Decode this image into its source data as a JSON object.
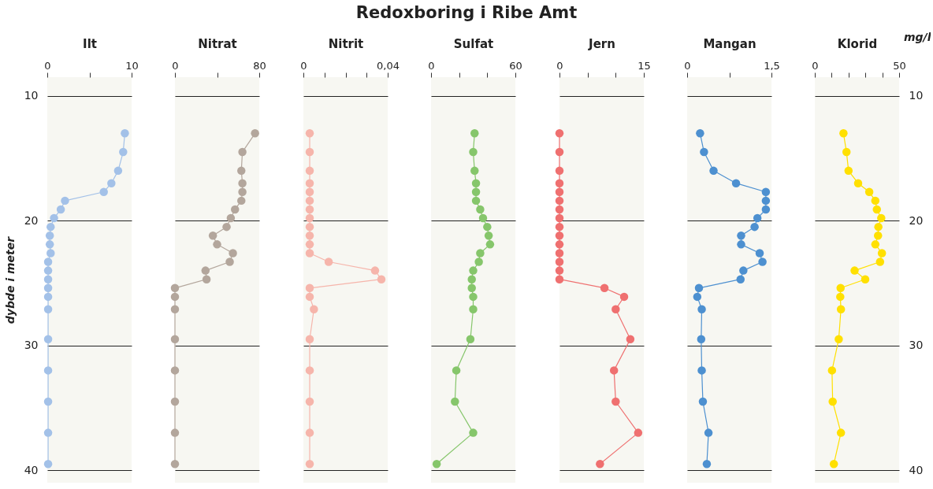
{
  "chart_data": [
    {
      "type": "other",
      "title": "Redoxboring i Ribe Amt"
    },
    {
      "type": "line",
      "xlabel": "Ilt",
      "ylabel": "dybde i meter",
      "color": "#a3c1e8",
      "marker": "circle",
      "grid": "y",
      "x": [
        9.2,
        9.0,
        8.4,
        7.6,
        6.7,
        2.1,
        1.6,
        0.8,
        0.4,
        0.3,
        0.3,
        0.4,
        0.1,
        0.1,
        0.1,
        0.1,
        0.1,
        0.1,
        0.1,
        0.1,
        0.1,
        0.1,
        0.1
      ],
      "values": [
        13.0,
        14.5,
        16.0,
        17.0,
        17.7,
        18.4,
        19.1,
        19.8,
        20.5,
        21.2,
        21.9,
        22.6,
        23.3,
        24.0,
        24.7,
        25.4,
        26.1,
        27.1,
        29.5,
        32.0,
        34.5,
        37.0,
        39.5
      ],
      "xlim": [
        0,
        10
      ],
      "xticks": [
        0,
        {
          "value": 5,
          "label": null
        },
        10
      ],
      "ylim": [
        41,
        8.5
      ],
      "yticks": [
        10,
        20,
        30,
        40
      ]
    },
    {
      "type": "line",
      "xlabel": "Nitrat",
      "color": "#b3a69c",
      "marker": "circle",
      "grid": "y",
      "tick_labels": "x",
      "x": [
        76,
        64,
        63,
        64,
        64,
        63,
        57,
        53,
        49,
        36,
        40,
        55,
        52,
        29,
        30,
        0,
        0,
        0,
        0,
        0,
        0,
        0,
        0
      ],
      "values": [
        13.0,
        14.5,
        16.0,
        17.0,
        17.7,
        18.4,
        19.1,
        19.8,
        20.5,
        21.2,
        21.9,
        22.6,
        23.3,
        24.0,
        24.7,
        25.4,
        26.1,
        27.1,
        29.5,
        32.0,
        34.5,
        37.0,
        39.5
      ],
      "xlim": [
        0,
        80
      ],
      "xticks": [
        0,
        {
          "value": 40,
          "label": null
        },
        80
      ],
      "ylim": [
        41,
        8.5
      ],
      "yticks": [
        10,
        20,
        30,
        40
      ]
    },
    {
      "type": "line",
      "xlabel": "Nitrit",
      "color": "#f6b5ab",
      "marker": "circle",
      "grid": "y",
      "tick_labels": "x",
      "x": [
        0.003,
        0.003,
        0.003,
        0.003,
        0.003,
        0.003,
        0.003,
        0.003,
        0.003,
        0.003,
        0.003,
        0.003,
        0.012,
        0.034,
        0.037,
        0.003,
        0.003,
        0.005,
        0.003,
        0.003,
        0.003,
        0.003,
        0.003
      ],
      "values": [
        13.0,
        14.5,
        16.0,
        17.0,
        17.7,
        18.4,
        19.1,
        19.8,
        20.5,
        21.2,
        21.9,
        22.6,
        23.3,
        24.0,
        24.7,
        25.4,
        26.1,
        27.1,
        29.5,
        32.0,
        34.5,
        37.0,
        39.5
      ],
      "xlim": [
        0,
        0.04
      ],
      "xticks": [
        0,
        {
          "value": 0.01,
          "label": null
        },
        {
          "value": 0.02,
          "label": null
        },
        {
          "value": 0.03,
          "label": null
        },
        {
          "value": 0.04,
          "label": "0,04"
        }
      ],
      "ylim": [
        41,
        8.5
      ],
      "yticks": [
        10,
        20,
        30,
        40
      ]
    },
    {
      "type": "line",
      "xlabel": "Sulfat",
      "color": "#86c66b",
      "marker": "circle",
      "grid": "y",
      "tick_labels": "x",
      "x": [
        31,
        30,
        31,
        32,
        32,
        32,
        35,
        37,
        40,
        41,
        42,
        35,
        34,
        30,
        29,
        29,
        30,
        30,
        28,
        18,
        17,
        30,
        4
      ],
      "values": [
        13.0,
        14.5,
        16.0,
        17.0,
        17.7,
        18.4,
        19.1,
        19.8,
        20.5,
        21.2,
        21.9,
        22.6,
        23.3,
        24.0,
        24.7,
        25.4,
        26.1,
        27.1,
        29.5,
        32.0,
        34.5,
        37.0,
        39.5
      ],
      "xlim": [
        0,
        60
      ],
      "xticks": [
        0,
        {
          "value": 20,
          "label": null
        },
        {
          "value": 40,
          "label": null
        },
        60
      ],
      "ylim": [
        41,
        8.5
      ],
      "yticks": [
        10,
        20,
        30,
        40
      ]
    },
    {
      "type": "line",
      "xlabel": "Jern",
      "color": "#ef7070",
      "marker": "circle",
      "grid": "y",
      "tick_labels": "x",
      "x": [
        0,
        0,
        0,
        0,
        0,
        0,
        0,
        0,
        0,
        0,
        0,
        0,
        0,
        0,
        0,
        8.0,
        11.5,
        10.0,
        12.6,
        9.7,
        10.0,
        14.0,
        7.2
      ],
      "values": [
        13.0,
        14.5,
        16.0,
        17.0,
        17.7,
        18.4,
        19.1,
        19.8,
        20.5,
        21.2,
        21.9,
        22.6,
        23.3,
        24.0,
        24.7,
        25.4,
        26.1,
        27.1,
        29.5,
        32.0,
        34.5,
        37.0,
        39.5
      ],
      "xlim": [
        0,
        15
      ],
      "xticks": [
        0,
        {
          "value": 5,
          "label": null
        },
        {
          "value": 10,
          "label": null
        },
        15
      ],
      "ylim": [
        41,
        8.5
      ],
      "yticks": [
        10,
        20,
        30,
        40
      ]
    },
    {
      "type": "line",
      "xlabel": "Mangan",
      "color": "#4d90d0",
      "marker": "circle",
      "grid": "y",
      "tick_labels": "x",
      "x": [
        0.23,
        0.3,
        0.47,
        0.87,
        1.4,
        1.4,
        1.4,
        1.25,
        1.2,
        0.96,
        0.96,
        1.29,
        1.34,
        1.0,
        0.95,
        0.21,
        0.18,
        0.26,
        0.25,
        0.26,
        0.28,
        0.38,
        0.35
      ],
      "values": [
        13.0,
        14.5,
        16.0,
        17.0,
        17.7,
        18.4,
        19.1,
        19.8,
        20.5,
        21.2,
        21.9,
        22.6,
        23.3,
        24.0,
        24.7,
        25.4,
        26.1,
        27.1,
        29.5,
        32.0,
        34.5,
        37.0,
        39.5
      ],
      "xlim": [
        0,
        1.5
      ],
      "xticks": [
        0,
        {
          "value": 0.75,
          "label": null
        },
        {
          "value": 1.5,
          "label": "1,5"
        }
      ],
      "ylim": [
        41,
        8.5
      ],
      "yticks": [
        10,
        20,
        30,
        40
      ]
    },
    {
      "type": "line",
      "xlabel": "Klorid",
      "color": "#ffe000",
      "marker": "circle",
      "grid": "y",
      "annotations": [
        "mg/l"
      ],
      "x": [
        17,
        18.8,
        20,
        25.7,
        32.3,
        35.9,
        36.8,
        39.4,
        37.7,
        37.5,
        35.9,
        39.8,
        38.7,
        23.6,
        29.9,
        15.3,
        15.1,
        15.5,
        14.2,
        10.2,
        10.6,
        15.5,
        11.3
      ],
      "values": [
        13.0,
        14.5,
        16.0,
        17.0,
        17.7,
        18.4,
        19.1,
        19.8,
        20.5,
        21.2,
        21.9,
        22.6,
        23.3,
        24.0,
        24.7,
        25.4,
        26.1,
        27.1,
        29.5,
        32.0,
        34.5,
        37.0,
        39.5
      ],
      "xlim": [
        0,
        50
      ],
      "xticks": [
        0,
        {
          "value": 10,
          "label": null
        },
        {
          "value": 20,
          "label": null
        },
        {
          "value": 30,
          "label": null
        },
        {
          "value": 40,
          "label": null
        },
        50
      ],
      "ylim": [
        41,
        8.5
      ],
      "yticks": [
        10,
        20,
        30,
        40
      ]
    }
  ]
}
